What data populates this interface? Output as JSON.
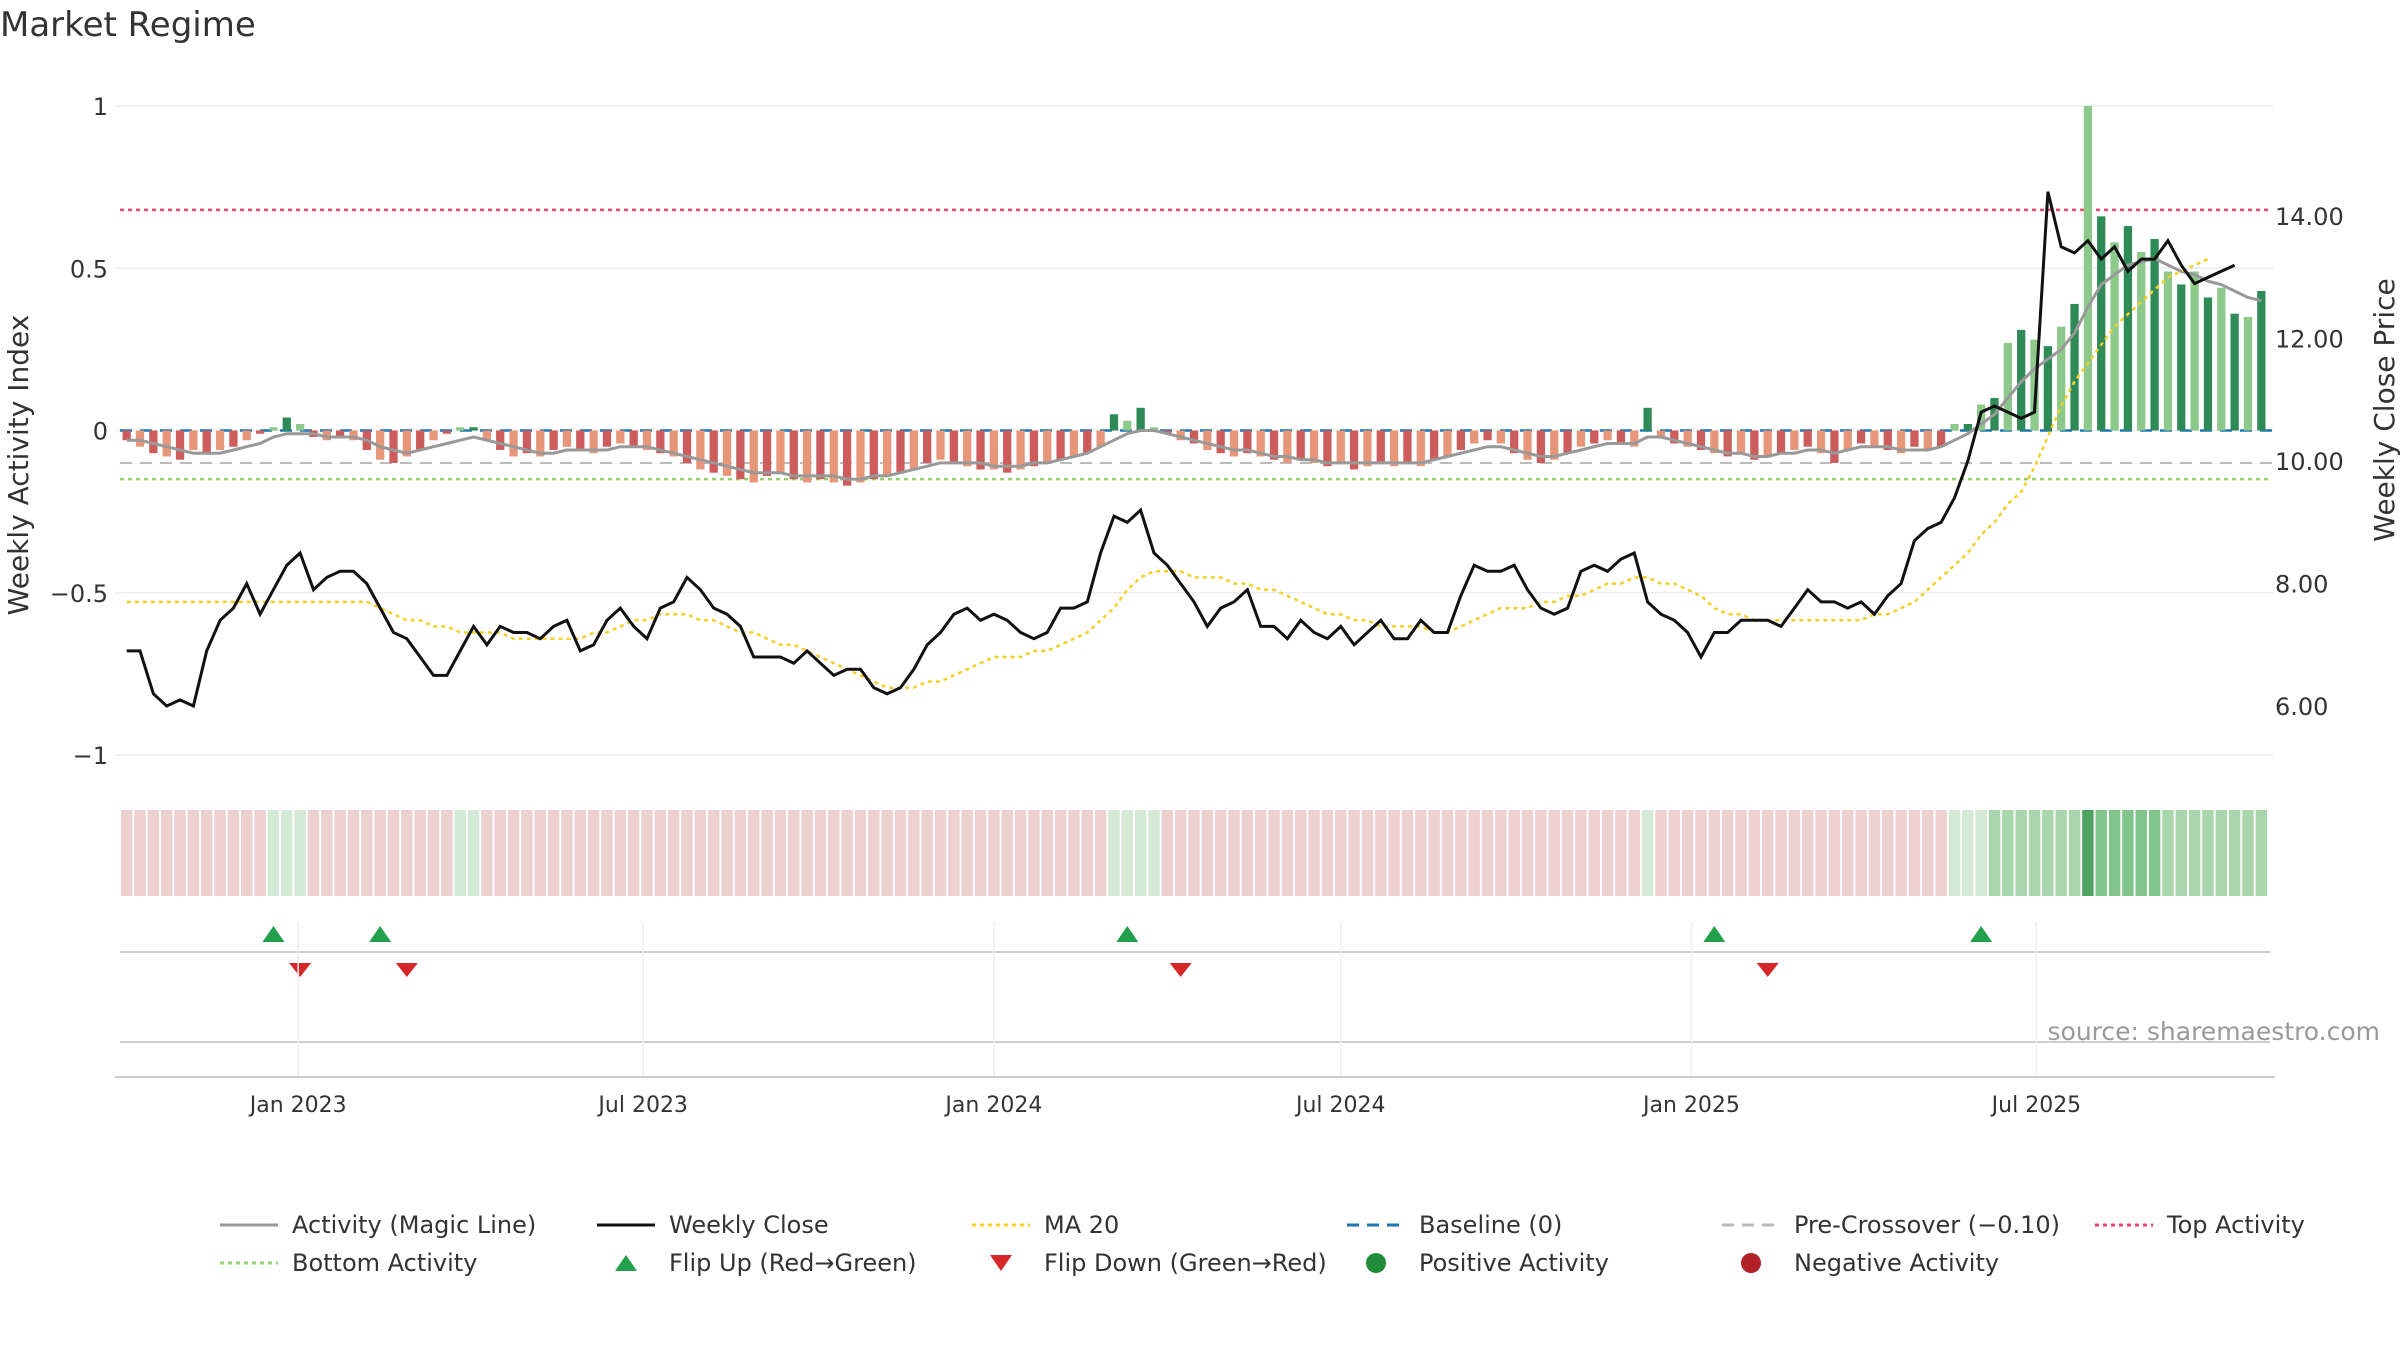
{
  "title": "Market Regime",
  "source": "source: sharemaestro.com",
  "axes": {
    "left_label": "Weekly Activity Index",
    "right_label": "Weekly Close Price",
    "left_ticks": [
      {
        "value": 1,
        "label": "1"
      },
      {
        "value": 0.5,
        "label": "0.5"
      },
      {
        "value": 0,
        "label": "0"
      },
      {
        "value": -0.5,
        "label": "−0.5"
      },
      {
        "value": -1,
        "label": "−1"
      }
    ],
    "right_ticks": [
      {
        "value": 14,
        "label": "14.00"
      },
      {
        "value": 12,
        "label": "12.00"
      },
      {
        "value": 10,
        "label": "10.00"
      },
      {
        "value": 8,
        "label": "8.00"
      },
      {
        "value": 6,
        "label": "6.00"
      }
    ],
    "x_ticks": [
      {
        "date": "2023-01-01",
        "label": "Jan 2023"
      },
      {
        "date": "2023-07-01",
        "label": "Jul 2023"
      },
      {
        "date": "2024-01-01",
        "label": "Jan 2024"
      },
      {
        "date": "2024-07-01",
        "label": "Jul 2024"
      },
      {
        "date": "2025-01-01",
        "label": "Jan 2025"
      },
      {
        "date": "2025-07-01",
        "label": "Jul 2025"
      }
    ]
  },
  "legend": {
    "placement": "bottom",
    "items": [
      {
        "label": "Activity (Magic Line)",
        "symbol": "line",
        "color": "#999999",
        "dash": ""
      },
      {
        "label": "Weekly Close",
        "symbol": "line",
        "color": "#111111",
        "dash": ""
      },
      {
        "label": "MA 20",
        "symbol": "line",
        "color": "#f2d027",
        "dash": "4,4"
      },
      {
        "label": "Baseline (0)",
        "symbol": "line",
        "color": "#1f77b4",
        "dash": "12,8"
      },
      {
        "label": "Pre-Crossover (−0.10)",
        "symbol": "line",
        "color": "#bbbbbb",
        "dash": "12,8"
      },
      {
        "label": "Top Activity",
        "symbol": "line",
        "color": "#e8456b",
        "dash": "4,4"
      },
      {
        "label": "Bottom Activity",
        "symbol": "line",
        "color": "#8fd46a",
        "dash": "4,4"
      },
      {
        "label": "Flip Up (Red→Green)",
        "symbol": "triangle-up",
        "color": "#22a04b"
      },
      {
        "label": "Flip Down (Green→Red)",
        "symbol": "triangle-down",
        "color": "#d62728"
      },
      {
        "label": "Positive Activity",
        "symbol": "dot",
        "color": "#1e8c3a"
      },
      {
        "label": "Negative Activity",
        "symbol": "dot",
        "color": "#b22028"
      }
    ]
  },
  "colors": {
    "pos_strong": "#2e8b57",
    "pos_light": "#8cc98a",
    "neg_strong": "#cd5c5c",
    "neg_light": "#e8967a",
    "magic": "#999999",
    "close": "#111111",
    "ma": "#f2d027",
    "baseline": "#1f77b4",
    "precross": "#bbbbbb",
    "top": "#e8456b",
    "bottom": "#8fd46a",
    "flip_up": "#22a04b",
    "flip_down": "#d62728"
  },
  "chart_data": {
    "type": "bar",
    "start_date": "2022-10-03",
    "interval_days": 7,
    "levels": {
      "baseline": 0,
      "pre_crossover": -0.1,
      "top_activity": 0.68,
      "bottom_activity": -0.15
    },
    "ylim_left": [
      -1,
      1
    ],
    "ylim_right": [
      5.2,
      15.8
    ],
    "activity": [
      -0.03,
      -0.05,
      -0.07,
      -0.08,
      -0.09,
      -0.06,
      -0.07,
      -0.06,
      -0.05,
      -0.03,
      -0.01,
      0.01,
      0.04,
      0.02,
      -0.02,
      -0.03,
      -0.02,
      -0.03,
      -0.06,
      -0.09,
      -0.1,
      -0.08,
      -0.06,
      -0.03,
      -0.01,
      0.01,
      0.01,
      -0.03,
      -0.06,
      -0.08,
      -0.07,
      -0.08,
      -0.06,
      -0.05,
      -0.06,
      -0.07,
      -0.05,
      -0.04,
      -0.05,
      -0.06,
      -0.07,
      -0.08,
      -0.1,
      -0.12,
      -0.13,
      -0.14,
      -0.15,
      -0.16,
      -0.14,
      -0.13,
      -0.15,
      -0.16,
      -0.15,
      -0.16,
      -0.17,
      -0.16,
      -0.15,
      -0.14,
      -0.13,
      -0.12,
      -0.1,
      -0.09,
      -0.1,
      -0.11,
      -0.12,
      -0.12,
      -0.13,
      -0.12,
      -0.11,
      -0.1,
      -0.09,
      -0.08,
      -0.07,
      -0.05,
      0.05,
      0.03,
      0.07,
      0.01,
      -0.01,
      -0.03,
      -0.04,
      -0.06,
      -0.07,
      -0.08,
      -0.07,
      -0.08,
      -0.09,
      -0.1,
      -0.09,
      -0.1,
      -0.11,
      -0.1,
      -0.12,
      -0.11,
      -0.1,
      -0.11,
      -0.1,
      -0.11,
      -0.09,
      -0.08,
      -0.06,
      -0.04,
      -0.03,
      -0.04,
      -0.07,
      -0.09,
      -0.1,
      -0.09,
      -0.07,
      -0.05,
      -0.04,
      -0.03,
      -0.04,
      -0.05,
      0.07,
      -0.02,
      -0.04,
      -0.05,
      -0.06,
      -0.07,
      -0.08,
      -0.07,
      -0.09,
      -0.08,
      -0.07,
      -0.06,
      -0.05,
      -0.07,
      -0.1,
      -0.06,
      -0.04,
      -0.05,
      -0.06,
      -0.07,
      -0.05,
      -0.06,
      -0.05,
      0.02,
      0.02,
      0.08,
      0.1,
      0.27,
      0.31,
      0.28,
      0.26,
      0.32,
      0.39,
      1.0,
      0.66,
      0.58,
      0.63,
      0.55,
      0.59,
      0.49,
      0.45,
      0.49,
      0.41,
      0.44,
      0.36,
      0.35,
      0.43
    ],
    "magic_line": [
      -0.03,
      -0.03,
      -0.04,
      -0.05,
      -0.06,
      -0.07,
      -0.07,
      -0.07,
      -0.06,
      -0.05,
      -0.04,
      -0.02,
      -0.01,
      -0.01,
      -0.01,
      -0.02,
      -0.02,
      -0.02,
      -0.03,
      -0.05,
      -0.06,
      -0.07,
      -0.06,
      -0.05,
      -0.04,
      -0.03,
      -0.02,
      -0.03,
      -0.04,
      -0.05,
      -0.06,
      -0.07,
      -0.07,
      -0.06,
      -0.06,
      -0.06,
      -0.06,
      -0.05,
      -0.05,
      -0.05,
      -0.06,
      -0.07,
      -0.08,
      -0.09,
      -0.1,
      -0.11,
      -0.12,
      -0.13,
      -0.13,
      -0.13,
      -0.14,
      -0.14,
      -0.14,
      -0.14,
      -0.15,
      -0.15,
      -0.14,
      -0.14,
      -0.13,
      -0.12,
      -0.11,
      -0.1,
      -0.1,
      -0.1,
      -0.1,
      -0.11,
      -0.11,
      -0.11,
      -0.1,
      -0.1,
      -0.09,
      -0.08,
      -0.07,
      -0.05,
      -0.03,
      -0.01,
      0.0,
      0.0,
      -0.01,
      -0.02,
      -0.03,
      -0.04,
      -0.05,
      -0.06,
      -0.06,
      -0.07,
      -0.08,
      -0.08,
      -0.09,
      -0.09,
      -0.1,
      -0.1,
      -0.1,
      -0.1,
      -0.1,
      -0.1,
      -0.1,
      -0.1,
      -0.09,
      -0.08,
      -0.07,
      -0.06,
      -0.05,
      -0.05,
      -0.06,
      -0.07,
      -0.08,
      -0.08,
      -0.07,
      -0.06,
      -0.05,
      -0.04,
      -0.04,
      -0.04,
      -0.02,
      -0.02,
      -0.03,
      -0.04,
      -0.05,
      -0.06,
      -0.07,
      -0.07,
      -0.08,
      -0.08,
      -0.07,
      -0.07,
      -0.06,
      -0.06,
      -0.07,
      -0.06,
      -0.05,
      -0.05,
      -0.05,
      -0.06,
      -0.06,
      -0.06,
      -0.05,
      -0.03,
      -0.01,
      0.02,
      0.05,
      0.1,
      0.15,
      0.19,
      0.22,
      0.25,
      0.3,
      0.38,
      0.45,
      0.48,
      0.51,
      0.52,
      0.53,
      0.51,
      0.49,
      0.48,
      0.46,
      0.45,
      0.43,
      0.41,
      0.4
    ],
    "close": [
      6.9,
      6.9,
      6.2,
      6.0,
      6.1,
      6.0,
      6.9,
      7.4,
      7.6,
      8.0,
      7.5,
      7.9,
      8.3,
      8.5,
      7.9,
      8.1,
      8.2,
      8.2,
      8.0,
      7.6,
      7.2,
      7.1,
      6.8,
      6.5,
      6.5,
      6.9,
      7.3,
      7.0,
      7.3,
      7.2,
      7.2,
      7.1,
      7.3,
      7.4,
      6.9,
      7.0,
      7.4,
      7.6,
      7.3,
      7.1,
      7.6,
      7.7,
      8.1,
      7.9,
      7.6,
      7.5,
      7.3,
      6.8,
      6.8,
      6.8,
      6.7,
      6.9,
      6.7,
      6.5,
      6.6,
      6.6,
      6.3,
      6.2,
      6.3,
      6.6,
      7.0,
      7.2,
      7.5,
      7.6,
      7.4,
      7.5,
      7.4,
      7.2,
      7.1,
      7.2,
      7.6,
      7.6,
      7.7,
      8.5,
      9.1,
      9.0,
      9.2,
      8.5,
      8.3,
      8.0,
      7.7,
      7.3,
      7.6,
      7.7,
      7.9,
      7.3,
      7.3,
      7.1,
      7.4,
      7.2,
      7.1,
      7.3,
      7.0,
      7.2,
      7.4,
      7.1,
      7.1,
      7.4,
      7.2,
      7.2,
      7.8,
      8.3,
      8.2,
      8.2,
      8.3,
      7.9,
      7.6,
      7.5,
      7.6,
      8.2,
      8.3,
      8.2,
      8.4,
      8.5,
      7.7,
      7.5,
      7.4,
      7.2,
      6.8,
      7.2,
      7.2,
      7.4,
      7.4,
      7.4,
      7.3,
      7.6,
      7.9,
      7.7,
      7.7,
      7.6,
      7.7,
      7.5,
      7.8,
      8.0,
      8.7,
      8.9,
      9.0,
      9.4,
      10.0,
      10.8,
      10.9,
      10.8,
      10.7,
      10.8,
      14.4,
      13.5,
      13.4,
      13.6,
      13.3,
      13.5,
      13.1,
      13.3,
      13.3,
      13.6,
      13.2,
      12.9,
      13.0,
      13.1,
      13.2
    ],
    "ma20": [
      7.7,
      7.7,
      7.7,
      7.7,
      7.7,
      7.7,
      7.7,
      7.7,
      7.7,
      7.7,
      7.7,
      7.7,
      7.7,
      7.7,
      7.7,
      7.7,
      7.7,
      7.7,
      7.7,
      7.6,
      7.5,
      7.4,
      7.4,
      7.3,
      7.3,
      7.2,
      7.2,
      7.2,
      7.2,
      7.1,
      7.1,
      7.1,
      7.1,
      7.1,
      7.1,
      7.2,
      7.2,
      7.3,
      7.4,
      7.4,
      7.5,
      7.5,
      7.5,
      7.4,
      7.4,
      7.3,
      7.2,
      7.2,
      7.1,
      7.0,
      7.0,
      6.9,
      6.8,
      6.7,
      6.6,
      6.5,
      6.4,
      6.3,
      6.3,
      6.3,
      6.4,
      6.4,
      6.5,
      6.6,
      6.7,
      6.8,
      6.8,
      6.8,
      6.9,
      6.9,
      7.0,
      7.1,
      7.2,
      7.4,
      7.6,
      7.9,
      8.1,
      8.2,
      8.2,
      8.2,
      8.1,
      8.1,
      8.1,
      8.0,
      8.0,
      7.9,
      7.9,
      7.8,
      7.7,
      7.6,
      7.5,
      7.5,
      7.4,
      7.4,
      7.3,
      7.3,
      7.3,
      7.3,
      7.2,
      7.2,
      7.3,
      7.4,
      7.5,
      7.6,
      7.6,
      7.6,
      7.7,
      7.7,
      7.8,
      7.8,
      7.9,
      8.0,
      8.0,
      8.1,
      8.1,
      8.0,
      8.0,
      7.9,
      7.8,
      7.6,
      7.5,
      7.5,
      7.4,
      7.4,
      7.4,
      7.4,
      7.4,
      7.4,
      7.4,
      7.4,
      7.4,
      7.5,
      7.5,
      7.6,
      7.7,
      7.9,
      8.1,
      8.3,
      8.5,
      8.8,
      9.0,
      9.3,
      9.5,
      9.9,
      10.4,
      10.9,
      11.3,
      11.6,
      11.9,
      12.2,
      12.4,
      12.6,
      12.8,
      13.0,
      13.1,
      13.2,
      13.3
    ],
    "flip_up_weeks": [
      11,
      19,
      75,
      119,
      139
    ],
    "flip_down_weeks": [
      13,
      21,
      79,
      123
    ]
  }
}
